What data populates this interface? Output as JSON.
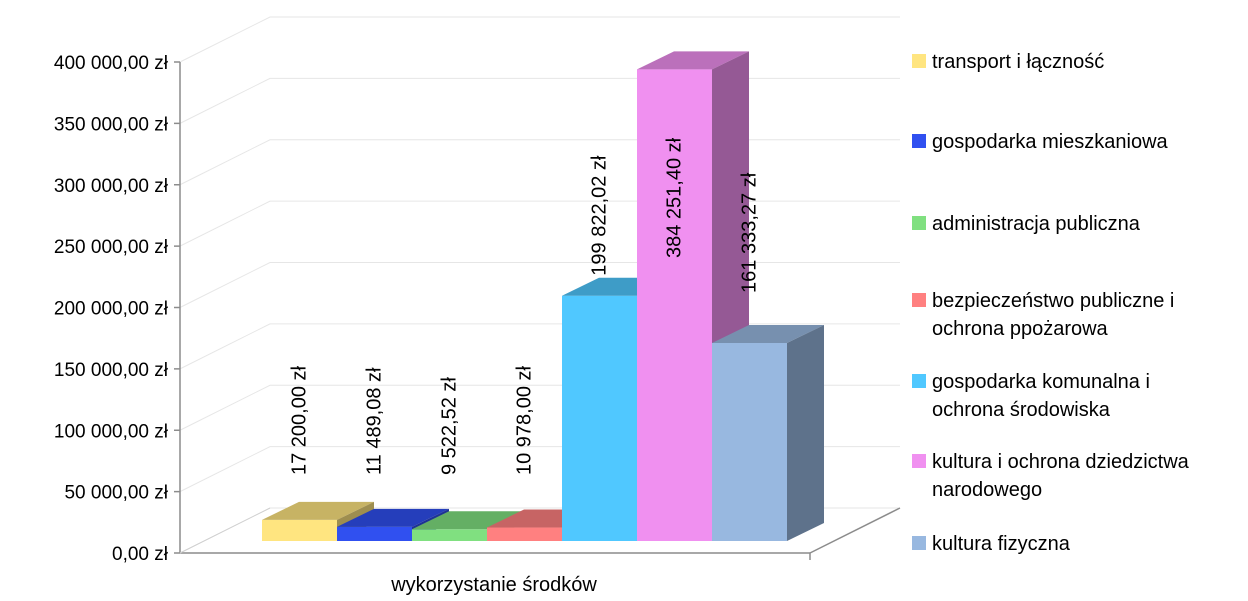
{
  "chart_data": {
    "type": "bar",
    "categories": [
      "wykorzystanie środków"
    ],
    "xlabel": "wykorzystanie środków",
    "ylim": [
      0,
      400000
    ],
    "ytick_values": [
      0,
      50000,
      100000,
      150000,
      200000,
      250000,
      300000,
      350000,
      400000
    ],
    "ytick_labels": [
      "0,00 zł",
      "50 000,00 zł",
      "100 000,00 zł",
      "150 000,00 zł",
      "200 000,00 zł",
      "250 000,00 zł",
      "300 000,00 zł",
      "350 000,00 zł",
      "400 000,00 zł"
    ],
    "grid": true,
    "legend_position": "right",
    "series": [
      {
        "name": "transport i łączność",
        "values": [
          17200.0
        ],
        "label": "17 200,00 zł",
        "color": "#FFE580"
      },
      {
        "name": "gospodarka mieszkaniowa",
        "values": [
          11489.08
        ],
        "label": "11 489,08 zł",
        "color": "#3050F0"
      },
      {
        "name": "administracja publiczna",
        "values": [
          9522.52
        ],
        "label": "9 522,52 zł",
        "color": "#80E080"
      },
      {
        "name": "bezpieczeństwo publiczne i ochrona ppożarowa",
        "values": [
          10978.0
        ],
        "label": "10 978,00 zł",
        "color": "#FF8080"
      },
      {
        "name": "gospodarka komunalna i ochrona środowiska",
        "values": [
          199822.02
        ],
        "label": "199 822,02 zł",
        "color": "#50C8FF"
      },
      {
        "name": "kultura i ochrona dziedzictwa narodowego",
        "values": [
          384251.4
        ],
        "label": "384 251,40 zł",
        "color": "#F090F0"
      },
      {
        "name": "kultura fizyczna",
        "values": [
          161333.27
        ],
        "label": "161 333,27 zł",
        "color": "#98B8E0"
      }
    ],
    "legend_lines": [
      [
        "transport i łączność"
      ],
      [
        "gospodarka mieszkaniowa"
      ],
      [
        "administracja publiczna"
      ],
      [
        "bezpieczeństwo publiczne i",
        "ochrona ppożarowa"
      ],
      [
        "gospodarka komunalna i",
        "ochrona środowiska"
      ],
      [
        "kultura i ochrona dziedzictwa",
        "narodowego"
      ],
      [
        "kultura fizyczna"
      ]
    ]
  }
}
